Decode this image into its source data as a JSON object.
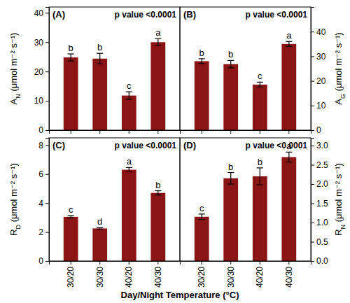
{
  "chart_data": [
    {
      "type": "bar",
      "title": "(A)",
      "annotation": "p value <0.0001",
      "y_label": "AN (μmol m⁻² s⁻¹)",
      "categories": [
        "30/20",
        "30/30",
        "40/20",
        "40/30"
      ],
      "values": [
        24.8,
        24.4,
        11.8,
        30.0
      ],
      "errors": [
        1.2,
        1.8,
        1.3,
        1.2
      ],
      "letters": [
        "b",
        "b",
        "c",
        "a"
      ],
      "color": "#8b1414",
      "ylim": [
        0,
        42
      ],
      "yticks": [
        0,
        10,
        20,
        30,
        40
      ],
      "tick_labels": "y"
    },
    {
      "type": "bar",
      "title": "(B)",
      "annotation": "p value <0.0001",
      "y_label": "AG (μmol m⁻² s⁻¹)",
      "categories": [
        "30/20",
        "30/30",
        "40/20",
        "40/30"
      ],
      "values": [
        28.0,
        26.8,
        18.5,
        35.0
      ],
      "errors": [
        1.0,
        1.5,
        1.0,
        1.0
      ],
      "letters": [
        "b",
        "b",
        "c",
        "a"
      ],
      "color": "#8b1414",
      "ylim": [
        0,
        50
      ],
      "yticks": [
        0,
        10,
        20,
        30,
        40
      ],
      "tick_labels": "y"
    },
    {
      "type": "bar",
      "title": "(C)",
      "annotation": "p value <0.0001",
      "y_label": "RD (μmol m⁻² s⁻¹)",
      "x_label": "Day/Night Temperature (°C)",
      "categories": [
        "30/20",
        "30/30",
        "40/20",
        "40/30"
      ],
      "values": [
        3.05,
        2.25,
        6.3,
        4.7
      ],
      "errors": [
        0.08,
        0.05,
        0.15,
        0.15
      ],
      "letters": [
        "c",
        "d",
        "a",
        "b"
      ],
      "color": "#8b1414",
      "ylim": [
        0,
        8.5
      ],
      "yticks": [
        0,
        2,
        4,
        6,
        8
      ]
    },
    {
      "type": "bar",
      "title": "(D)",
      "annotation": "p value <0.0001",
      "y_label": "RN (μmol m⁻² s⁻¹)",
      "categories": [
        "30/20",
        "30/30",
        "40/20",
        "40/30"
      ],
      "values": [
        1.15,
        2.15,
        2.2,
        2.7
      ],
      "errors": [
        0.07,
        0.15,
        0.22,
        0.13
      ],
      "letters": [
        "c",
        "b",
        "b",
        "a"
      ],
      "color": "#8b1414",
      "ylim": [
        0,
        3.2
      ],
      "yticks": [
        {
          "value": 0,
          "label": "0.0"
        },
        {
          "value": 0.5,
          "label": "0.5"
        },
        {
          "value": 1,
          "label": "1.0"
        },
        {
          "value": 1.5,
          "label": "1.5"
        },
        {
          "value": 2,
          "label": "2.0"
        },
        {
          "value": 2.5,
          "label": "2.5"
        },
        {
          "value": 3,
          "label": "3.0"
        }
      ]
    }
  ]
}
